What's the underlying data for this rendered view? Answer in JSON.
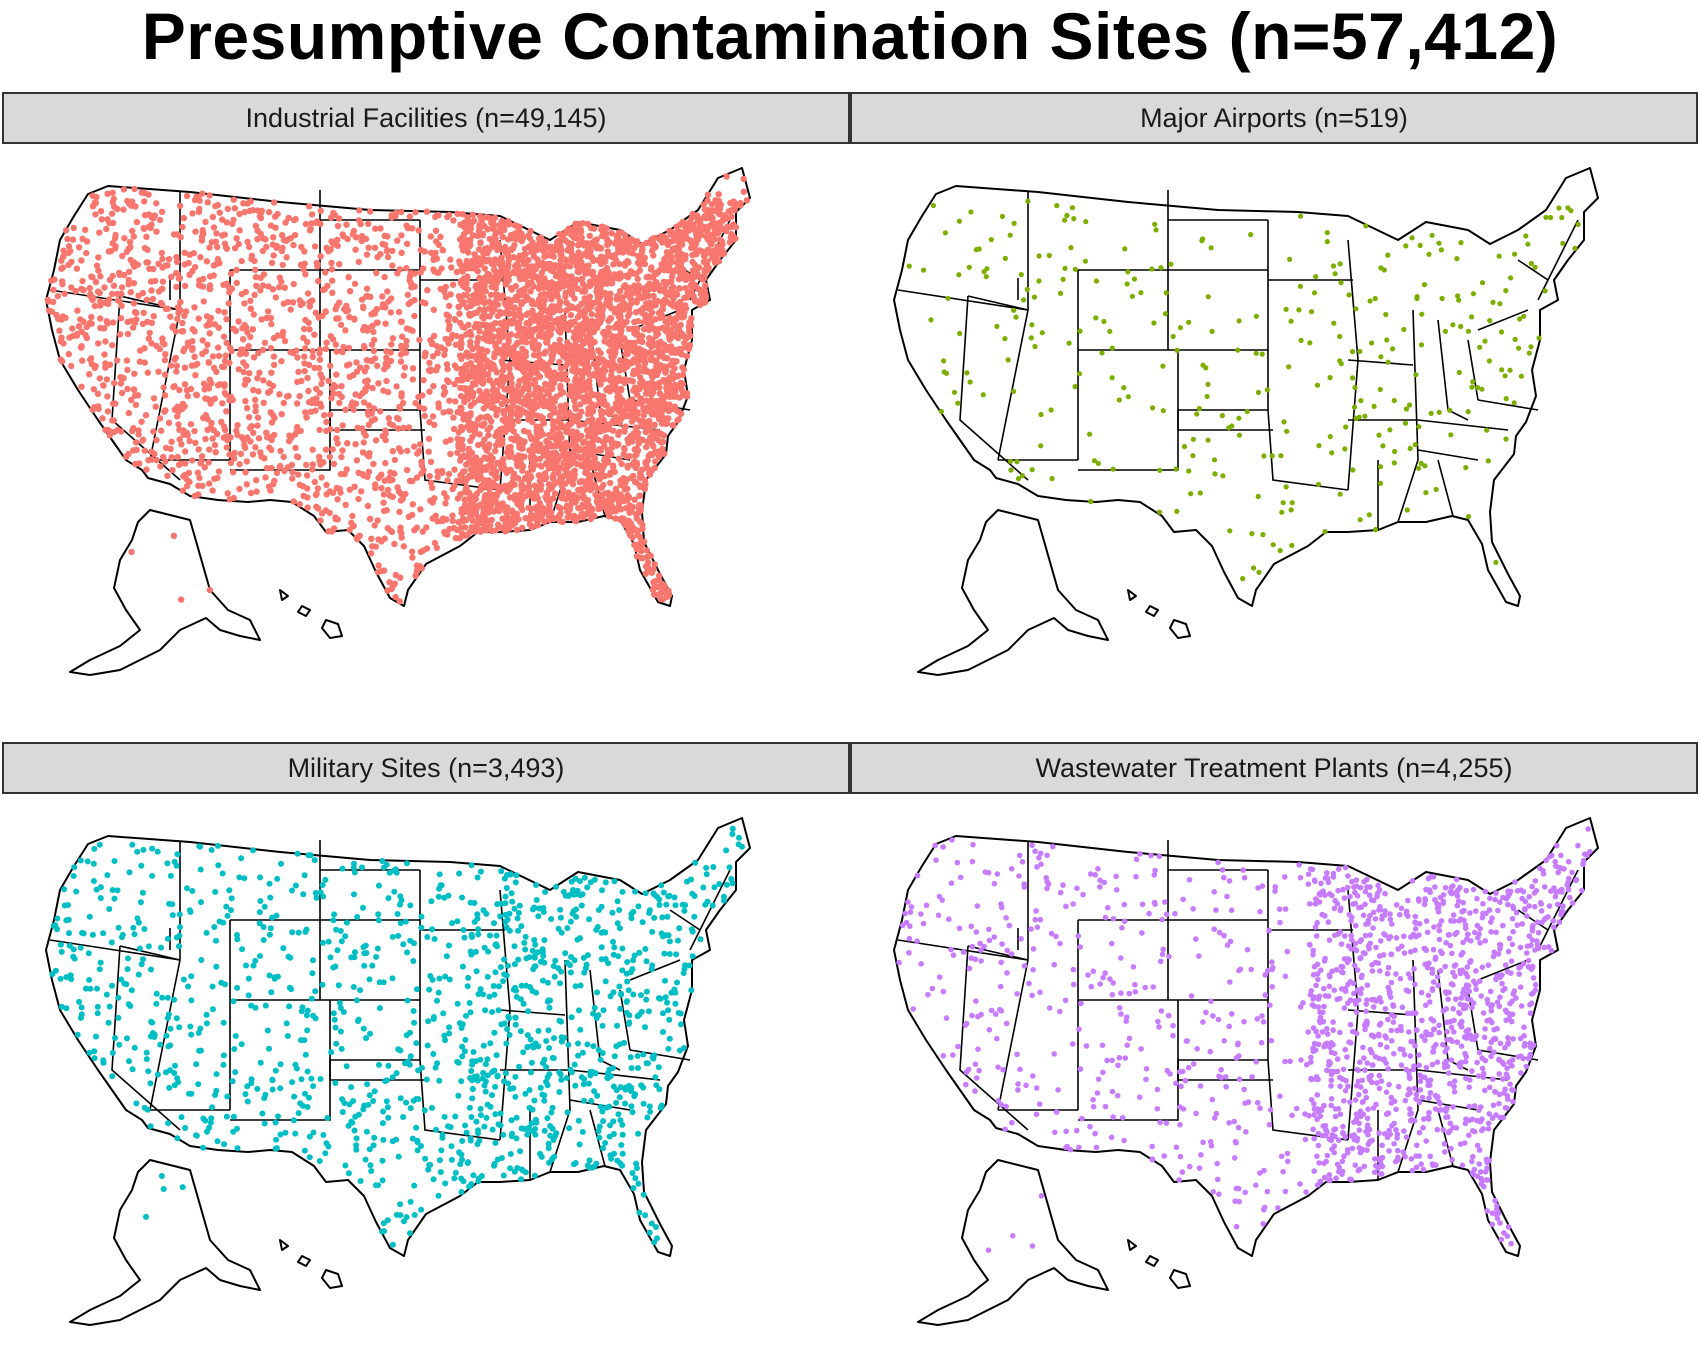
{
  "title": "Presumptive Contamination Sites (n=57,412)",
  "panels": [
    {
      "id": "industrial",
      "label": "Industrial Facilities (n=49,145)",
      "color": "#F8766D",
      "density": "very-high"
    },
    {
      "id": "airports",
      "label": "Major Airports (n=519)",
      "color": "#7CAE00",
      "density": "low"
    },
    {
      "id": "military",
      "label": "Military Sites (n=3,493)",
      "color": "#00BFC4",
      "density": "medium"
    },
    {
      "id": "wastewater",
      "label": "Wastewater Treatment Plants (n=4,255)",
      "color": "#C77CFF",
      "density": "medium-east"
    }
  ]
}
